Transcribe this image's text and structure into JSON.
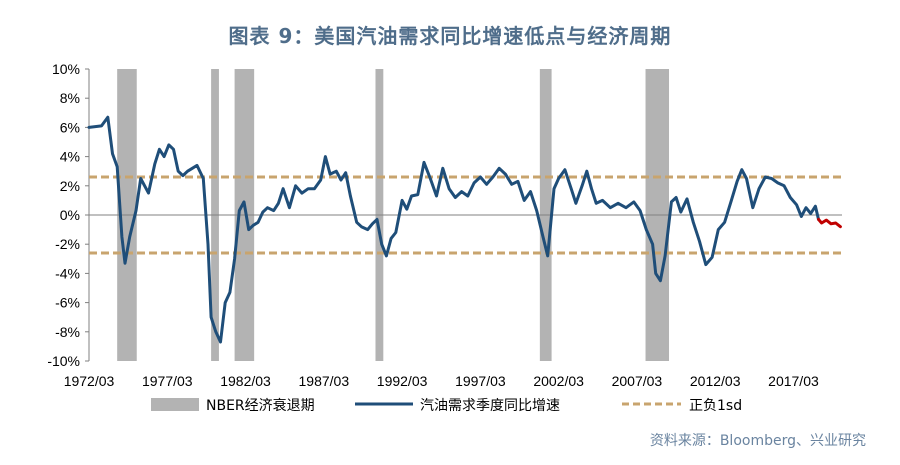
{
  "title": "图表 9：美国汽油需求同比增速低点与经济周期",
  "source": "资料来源：Bloomberg、兴业研究",
  "colors": {
    "line": "#1f4e79",
    "recent": "#c00000",
    "band": "#c8a46e",
    "recession": "#b3b3b3",
    "axis": "#808080"
  },
  "chart_data": {
    "type": "line",
    "x_start": "1972/03",
    "x_tick_labels": [
      "1972/03",
      "1977/03",
      "1982/03",
      "1987/03",
      "1992/03",
      "1997/03",
      "2002/03",
      "2007/03",
      "2012/03",
      "2017/03"
    ],
    "y_tick_labels": [
      "10%",
      "8%",
      "6%",
      "4%",
      "2%",
      "0%",
      "-2%",
      "-4%",
      "-6%",
      "-8%",
      "-10%"
    ],
    "ylim": [
      -10,
      10
    ],
    "legend": [
      "NBER经济衰退期",
      "汽油需求季度同比增速",
      "正负1sd"
    ],
    "sd_band": 2.6,
    "recessions": [
      [
        1974.0,
        1975.25
      ],
      [
        1980.0,
        1980.5
      ],
      [
        1981.5,
        1982.75
      ],
      [
        1990.5,
        1991.0
      ],
      [
        2001.0,
        2001.75
      ],
      [
        2007.75,
        2009.25
      ]
    ],
    "series": [
      {
        "values": [
          [
            1972.2,
            6.0
          ],
          [
            1973.0,
            6.1
          ],
          [
            1973.4,
            6.7
          ],
          [
            1973.7,
            4.2
          ],
          [
            1974.0,
            3.3
          ],
          [
            1974.3,
            -1.5
          ],
          [
            1974.5,
            -3.3
          ],
          [
            1974.8,
            -1.5
          ],
          [
            1975.2,
            0.3
          ],
          [
            1975.5,
            2.5
          ],
          [
            1976.0,
            1.5
          ],
          [
            1976.4,
            3.5
          ],
          [
            1976.7,
            4.5
          ],
          [
            1977.0,
            4.0
          ],
          [
            1977.3,
            4.8
          ],
          [
            1977.6,
            4.5
          ],
          [
            1977.9,
            3.0
          ],
          [
            1978.2,
            2.7
          ],
          [
            1978.5,
            3.0
          ],
          [
            1978.8,
            3.2
          ],
          [
            1979.1,
            3.4
          ],
          [
            1979.5,
            2.5
          ],
          [
            1979.8,
            -2.0
          ],
          [
            1980.0,
            -7.0
          ],
          [
            1980.3,
            -8.0
          ],
          [
            1980.6,
            -8.7
          ],
          [
            1980.9,
            -6.0
          ],
          [
            1981.2,
            -5.3
          ],
          [
            1981.5,
            -3.0
          ],
          [
            1981.8,
            0.3
          ],
          [
            1982.1,
            0.9
          ],
          [
            1982.4,
            -1.0
          ],
          [
            1982.7,
            -0.7
          ],
          [
            1983.0,
            -0.5
          ],
          [
            1983.3,
            0.2
          ],
          [
            1983.6,
            0.5
          ],
          [
            1984.0,
            0.3
          ],
          [
            1984.3,
            0.8
          ],
          [
            1984.6,
            1.8
          ],
          [
            1985.0,
            0.5
          ],
          [
            1985.4,
            2.0
          ],
          [
            1985.8,
            1.5
          ],
          [
            1986.2,
            1.8
          ],
          [
            1986.6,
            1.8
          ],
          [
            1987.0,
            2.4
          ],
          [
            1987.3,
            4.0
          ],
          [
            1987.6,
            2.8
          ],
          [
            1988.0,
            3.0
          ],
          [
            1988.3,
            2.4
          ],
          [
            1988.6,
            2.9
          ],
          [
            1988.9,
            1.3
          ],
          [
            1989.3,
            -0.5
          ],
          [
            1989.6,
            -0.8
          ],
          [
            1990.0,
            -1.0
          ],
          [
            1990.3,
            -0.6
          ],
          [
            1990.6,
            -0.3
          ],
          [
            1990.9,
            -2.0
          ],
          [
            1991.2,
            -2.8
          ],
          [
            1991.5,
            -1.6
          ],
          [
            1991.8,
            -1.2
          ],
          [
            1992.2,
            1.0
          ],
          [
            1992.5,
            0.4
          ],
          [
            1992.8,
            1.3
          ],
          [
            1993.2,
            1.4
          ],
          [
            1993.6,
            3.6
          ],
          [
            1994.0,
            2.5
          ],
          [
            1994.4,
            1.3
          ],
          [
            1994.8,
            3.2
          ],
          [
            1995.2,
            1.8
          ],
          [
            1995.6,
            1.2
          ],
          [
            1996.0,
            1.6
          ],
          [
            1996.4,
            1.3
          ],
          [
            1996.8,
            2.2
          ],
          [
            1997.2,
            2.6
          ],
          [
            1997.6,
            2.1
          ],
          [
            1998.0,
            2.6
          ],
          [
            1998.4,
            3.2
          ],
          [
            1998.8,
            2.8
          ],
          [
            1999.2,
            2.1
          ],
          [
            1999.6,
            2.3
          ],
          [
            2000.0,
            1.0
          ],
          [
            2000.4,
            1.6
          ],
          [
            2000.8,
            0.3
          ],
          [
            2001.2,
            -1.5
          ],
          [
            2001.5,
            -2.8
          ],
          [
            2001.9,
            1.8
          ],
          [
            2002.2,
            2.5
          ],
          [
            2002.6,
            3.1
          ],
          [
            2003.0,
            1.8
          ],
          [
            2003.3,
            0.8
          ],
          [
            2003.7,
            2.0
          ],
          [
            2004.0,
            3.0
          ],
          [
            2004.3,
            1.8
          ],
          [
            2004.6,
            0.8
          ],
          [
            2005.0,
            1.0
          ],
          [
            2005.5,
            0.5
          ],
          [
            2006.0,
            0.8
          ],
          [
            2006.5,
            0.5
          ],
          [
            2007.0,
            0.9
          ],
          [
            2007.4,
            0.3
          ],
          [
            2007.8,
            -1.0
          ],
          [
            2008.2,
            -2.0
          ],
          [
            2008.4,
            -4.0
          ],
          [
            2008.7,
            -4.5
          ],
          [
            2009.0,
            -2.8
          ],
          [
            2009.4,
            0.9
          ],
          [
            2009.7,
            1.2
          ],
          [
            2010.0,
            0.2
          ],
          [
            2010.4,
            1.1
          ],
          [
            2010.8,
            -0.5
          ],
          [
            2011.2,
            -1.8
          ],
          [
            2011.6,
            -3.4
          ],
          [
            2012.0,
            -2.9
          ],
          [
            2012.4,
            -1.0
          ],
          [
            2012.8,
            -0.5
          ],
          [
            2013.2,
            0.9
          ],
          [
            2013.6,
            2.3
          ],
          [
            2013.9,
            3.1
          ],
          [
            2014.2,
            2.5
          ],
          [
            2014.6,
            0.5
          ],
          [
            2015.0,
            1.8
          ],
          [
            2015.4,
            2.6
          ],
          [
            2015.8,
            2.5
          ],
          [
            2016.2,
            2.2
          ],
          [
            2016.6,
            2.0
          ],
          [
            2017.0,
            1.2
          ],
          [
            2017.4,
            0.7
          ],
          [
            2017.7,
            -0.1
          ],
          [
            2018.0,
            0.5
          ],
          [
            2018.3,
            0.1
          ],
          [
            2018.6,
            0.6
          ],
          [
            2018.8,
            -0.3
          ]
        ]
      },
      {
        "values": [
          [
            2018.8,
            -0.3
          ],
          [
            2019.0,
            -0.55
          ],
          [
            2019.3,
            -0.35
          ],
          [
            2019.6,
            -0.6
          ],
          [
            2019.9,
            -0.55
          ],
          [
            2020.2,
            -0.8
          ]
        ]
      }
    ]
  }
}
